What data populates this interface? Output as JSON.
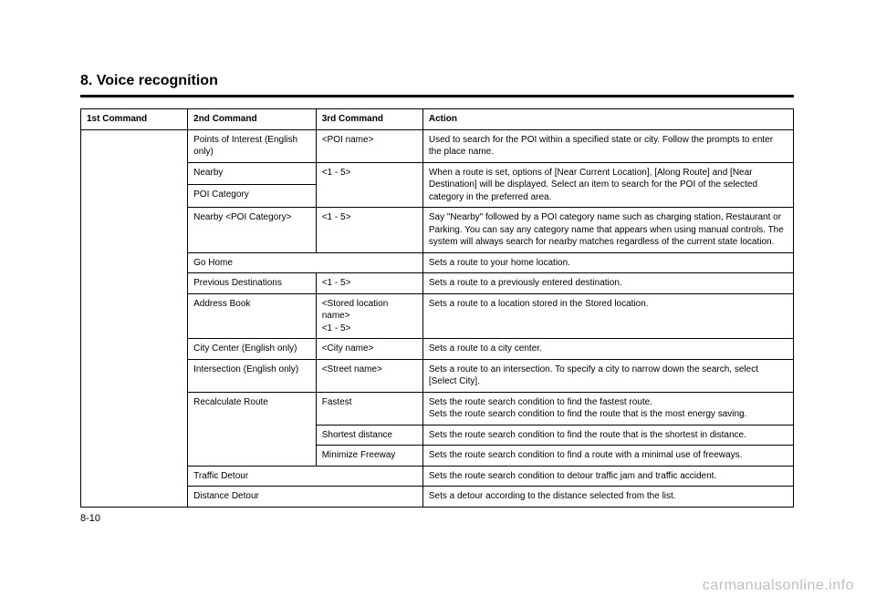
{
  "section_title": "8. Voice recognition",
  "page_number": "8-10",
  "watermark": "carmanualsonline.info",
  "table": {
    "headers": {
      "c1": "1st Command",
      "c2": "2nd Command",
      "c3": "3rd Command",
      "c4": "Action"
    },
    "rows": {
      "poi": {
        "c2": "Points of Interest (English only)",
        "c3": "<POI name>",
        "c4": "Used to search for the POI within a specified state or city. Follow the prompts to enter the place name."
      },
      "nearby": {
        "c2": "Nearby",
        "c3": "<1 - 5>",
        "c4": "When a route is set, options of [Near Current Location], [Along Route] and [Near Destination] will be displayed. Select an item to search for the POI of the selected category in the preferred area."
      },
      "poi_cat": {
        "c2": "POI Category"
      },
      "nearby_poi_cat": {
        "c2": "Nearby <POI Category>",
        "c3": "<1 - 5>",
        "c4": "Say \"Nearby\" followed by a POI category name such as charging station, Restaurant or Parking. You can say any category name that appears when using manual controls. The system will always search for nearby matches regardless of the current state location."
      },
      "go_home": {
        "c2": "Go Home",
        "c4": "Sets a route to your home location."
      },
      "prev_dest": {
        "c2": "Previous Destinations",
        "c3": "<1 - 5>",
        "c4": "Sets a route to a previously entered destination."
      },
      "addr_book": {
        "c2": "Address Book",
        "c3": "<Stored location name>\n<1 - 5>",
        "c4": "Sets a route to a location stored in the Stored location."
      },
      "city_center": {
        "c2": "City Center (English only)",
        "c3": "<City name>",
        "c4": "Sets a route to a city center."
      },
      "intersection": {
        "c2": "Intersection (English only)",
        "c3": "<Street name>",
        "c4": "Sets a route to an intersection. To specify a city to narrow down the search, select [Select City]."
      },
      "recalc_fast": {
        "c2": "Recalculate Route",
        "c3": "Fastest",
        "c4": "Sets the route search condition to find the fastest route.\nSets the route search condition to find the route that is the most energy saving."
      },
      "recalc_short": {
        "c3": "Shortest distance",
        "c4": "Sets the route search condition to find the route that is the shortest in distance."
      },
      "recalc_min": {
        "c3": "Minimize Freeway",
        "c4": "Sets the route search condition to find a route with a minimal use of freeways."
      },
      "traffic_detour": {
        "c2": "Traffic Detour",
        "c4": "Sets the route search condition to detour traffic jam and traffic accident."
      },
      "distance_detour": {
        "c2": "Distance Detour",
        "c4": "Sets a detour according to the distance selected from the list."
      }
    }
  }
}
